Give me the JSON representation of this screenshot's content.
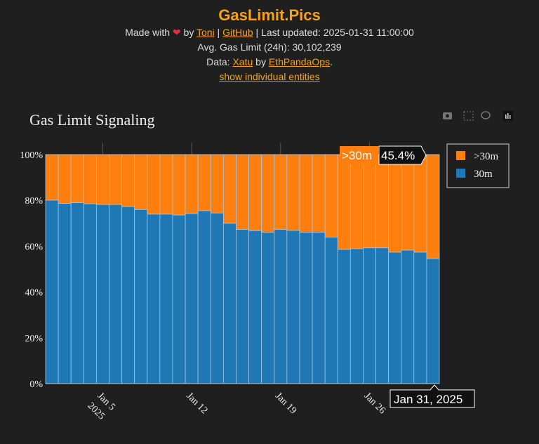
{
  "header": {
    "title": "GasLimit.Pics",
    "made_with": "Made with",
    "heart_icon": "heart-icon",
    "by": "by",
    "author_link": "Toni",
    "sep": "|",
    "github_link": "GitHub",
    "last_updated": "| Last updated: 2025-01-31 11:00:00",
    "avg_gas_limit": "Avg. Gas Limit (24h): 30,102,239",
    "data_prefix": "Data:",
    "data_link": "Xatu",
    "data_by": "by",
    "org_link": "EthPandaOps",
    "period": ".",
    "toggle_link": "show individual entities"
  },
  "modebar": [
    "camera-icon",
    "box-select-icon",
    "lasso-icon",
    "plotly-logo-icon"
  ],
  "chart_data": {
    "type": "bar",
    "stacked": true,
    "title": "Gas Limit Signaling",
    "categories": [
      "2025-01-01",
      "2025-01-02",
      "2025-01-03",
      "2025-01-04",
      "2025-01-05",
      "2025-01-06",
      "2025-01-07",
      "2025-01-08",
      "2025-01-09",
      "2025-01-10",
      "2025-01-11",
      "2025-01-12",
      "2025-01-13",
      "2025-01-14",
      "2025-01-15",
      "2025-01-16",
      "2025-01-17",
      "2025-01-18",
      "2025-01-19",
      "2025-01-20",
      "2025-01-21",
      "2025-01-22",
      "2025-01-23",
      "2025-01-24",
      "2025-01-25",
      "2025-01-26",
      "2025-01-27",
      "2025-01-28",
      "2025-01-29",
      "2025-01-30",
      "2025-01-31"
    ],
    "series": [
      {
        "name": "30m",
        "color": "#1f77b4",
        "values": [
          80.1,
          78.7,
          79.0,
          78.5,
          78.2,
          78.2,
          77.3,
          76.0,
          74.0,
          74.0,
          73.6,
          74.3,
          75.5,
          74.5,
          70.0,
          67.3,
          66.8,
          66.1,
          67.3,
          66.9,
          66.1,
          66.1,
          64.0,
          58.6,
          58.9,
          59.3,
          59.3,
          57.4,
          58.3,
          57.4,
          54.6
        ]
      },
      {
        "name": ">30m",
        "color": "#ff7f0e",
        "values": [
          19.9,
          21.3,
          21.0,
          21.5,
          21.8,
          21.8,
          22.7,
          24.0,
          26.0,
          26.0,
          26.4,
          25.7,
          24.5,
          25.5,
          30.0,
          32.7,
          33.2,
          33.9,
          32.7,
          33.1,
          33.9,
          33.9,
          36.0,
          41.4,
          41.1,
          40.7,
          40.7,
          42.6,
          41.7,
          42.6,
          45.4
        ]
      }
    ],
    "x_ticks": [
      {
        "date": "2025-01-05",
        "label": "Jan 5",
        "sub": "2025"
      },
      {
        "date": "2025-01-12",
        "label": "Jan 12"
      },
      {
        "date": "2025-01-19",
        "label": "Jan 19"
      },
      {
        "date": "2025-01-26",
        "label": "Jan 26"
      }
    ],
    "y_ticks": [
      "0%",
      "20%",
      "40%",
      "60%",
      "80%",
      "100%"
    ],
    "ylim": [
      0,
      100
    ],
    "legend": {
      "placement": "top-right",
      "order": [
        ">30m",
        "30m"
      ]
    },
    "hover": {
      "series": ">30m",
      "value": "45.4%",
      "x_label": "Jan 31, 2025"
    }
  }
}
